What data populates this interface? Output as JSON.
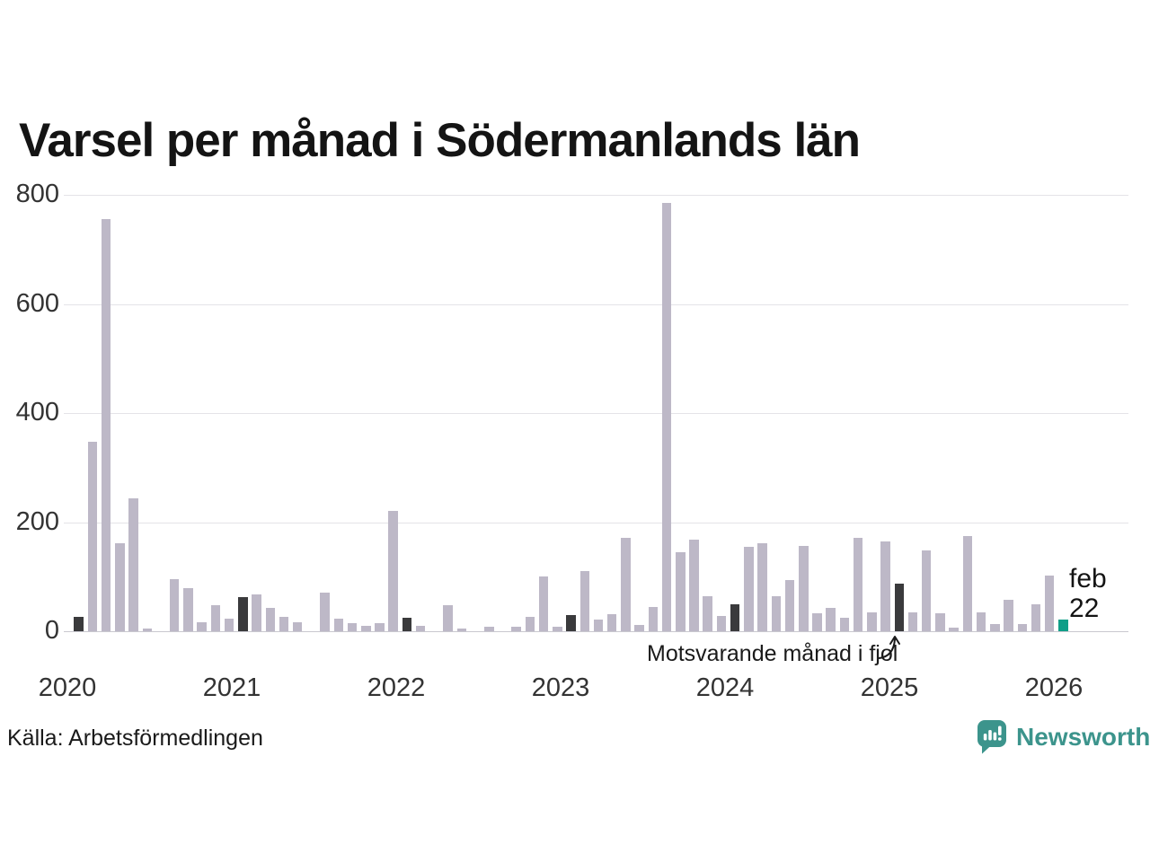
{
  "title": "Varsel per månad i Södermanlands län",
  "source": "Källa: Arbetsförmedlingen",
  "annotation": {
    "text": "Motsvarande månad i fjol"
  },
  "highlight_label": {
    "month": "feb",
    "value": "22"
  },
  "branding": {
    "name": "Newsworthy"
  },
  "colors": {
    "bar_default": "#bdb8c7",
    "bar_reference": "#3a3a3c",
    "bar_current": "#0f9e88",
    "brand": "#3c948c",
    "axis_text": "#333333"
  },
  "chart_data": {
    "type": "bar",
    "title": "Varsel per månad i Södermanlands län",
    "xlabel": "",
    "ylabel": "",
    "ylim": [
      0,
      800
    ],
    "yticks": [
      0,
      200,
      400,
      600,
      800
    ],
    "xticks": [
      "2020",
      "2021",
      "2022",
      "2023",
      "2024",
      "2025",
      "2026"
    ],
    "grid": "horizontal",
    "legend_position": "none",
    "annotation": "Motsvarande månad i fjol (pekar på feb 2025)",
    "current_month_label": "feb 22",
    "reference_months": [
      "2020-02",
      "2021-02",
      "2022-02",
      "2023-02",
      "2024-02",
      "2025-02"
    ],
    "current_month": "2026-02",
    "x": [
      "2020-01",
      "2020-02",
      "2020-03",
      "2020-04",
      "2020-05",
      "2020-06",
      "2020-07",
      "2020-08",
      "2020-09",
      "2020-10",
      "2020-11",
      "2020-12",
      "2021-01",
      "2021-02",
      "2021-03",
      "2021-04",
      "2021-05",
      "2021-06",
      "2021-07",
      "2021-08",
      "2021-09",
      "2021-10",
      "2021-11",
      "2021-12",
      "2022-01",
      "2022-02",
      "2022-03",
      "2022-04",
      "2022-05",
      "2022-06",
      "2022-07",
      "2022-08",
      "2022-09",
      "2022-10",
      "2022-11",
      "2022-12",
      "2023-01",
      "2023-02",
      "2023-03",
      "2023-04",
      "2023-05",
      "2023-06",
      "2023-07",
      "2023-08",
      "2023-09",
      "2023-10",
      "2023-11",
      "2023-12",
      "2024-01",
      "2024-02",
      "2024-03",
      "2024-04",
      "2024-05",
      "2024-06",
      "2024-07",
      "2024-08",
      "2024-09",
      "2024-10",
      "2024-11",
      "2024-12",
      "2025-01",
      "2025-02",
      "2025-03",
      "2025-04",
      "2025-05",
      "2025-06",
      "2025-07",
      "2025-08",
      "2025-09",
      "2025-10",
      "2025-11",
      "2025-12",
      "2026-01",
      "2026-02"
    ],
    "values": [
      0,
      26,
      348,
      755,
      161,
      244,
      5,
      0,
      96,
      79,
      17,
      48,
      23,
      62,
      68,
      43,
      27,
      17,
      0,
      70,
      23,
      14,
      10,
      14,
      220,
      24,
      10,
      0,
      47,
      5,
      0,
      9,
      0,
      9,
      26,
      100,
      9,
      30,
      110,
      21,
      31,
      172,
      12,
      44,
      785,
      145,
      168,
      65,
      28,
      50,
      154,
      161,
      65,
      94,
      156,
      33,
      42,
      24,
      171,
      35,
      164,
      88,
      34,
      148,
      33,
      6,
      175,
      35,
      13,
      58,
      13,
      50,
      102,
      22
    ]
  }
}
